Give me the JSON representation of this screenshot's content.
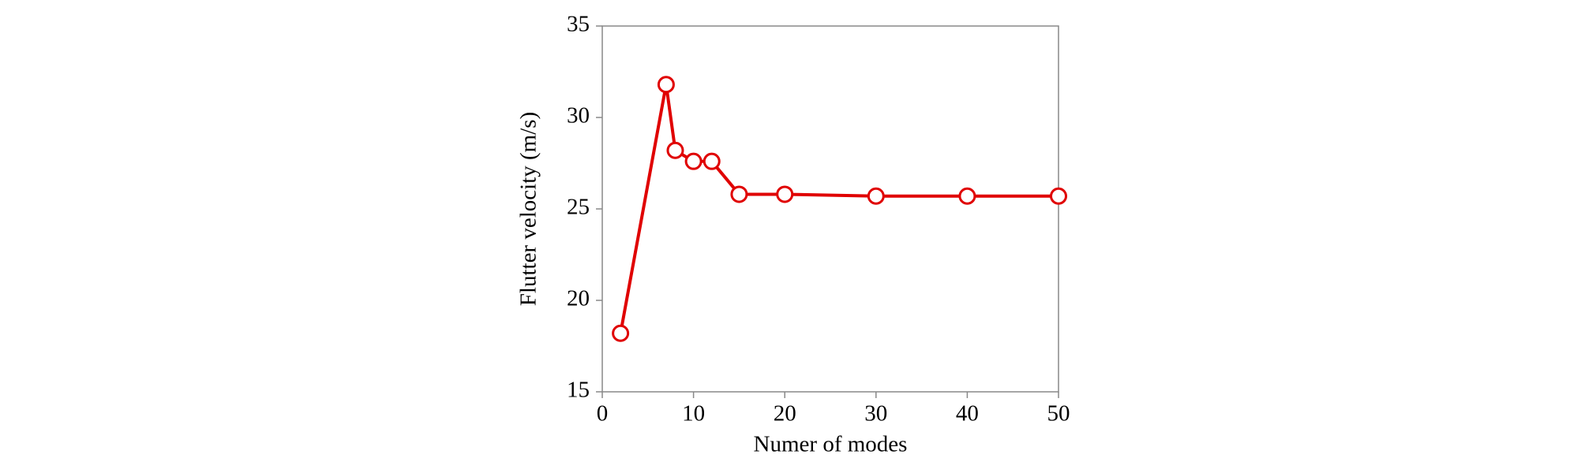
{
  "chart_data": {
    "type": "line",
    "x_label": "Numer of modes",
    "y_label": "Flutter velocity (m/s)",
    "x": [
      2,
      7,
      8,
      10,
      12,
      15,
      20,
      30,
      40,
      50
    ],
    "series": [
      {
        "color": "#e00000",
        "values": [
          18.2,
          31.8,
          28.2,
          27.6,
          27.6,
          25.8,
          25.8,
          25.7,
          25.7,
          25.7
        ]
      }
    ],
    "xlim": [
      0,
      50
    ],
    "xticks": [
      0,
      10,
      20,
      30,
      40,
      50
    ],
    "ylim": [
      15,
      35
    ],
    "yticks": [
      15,
      20,
      25,
      30,
      35
    ],
    "grid": false,
    "markers": "open-circle"
  }
}
